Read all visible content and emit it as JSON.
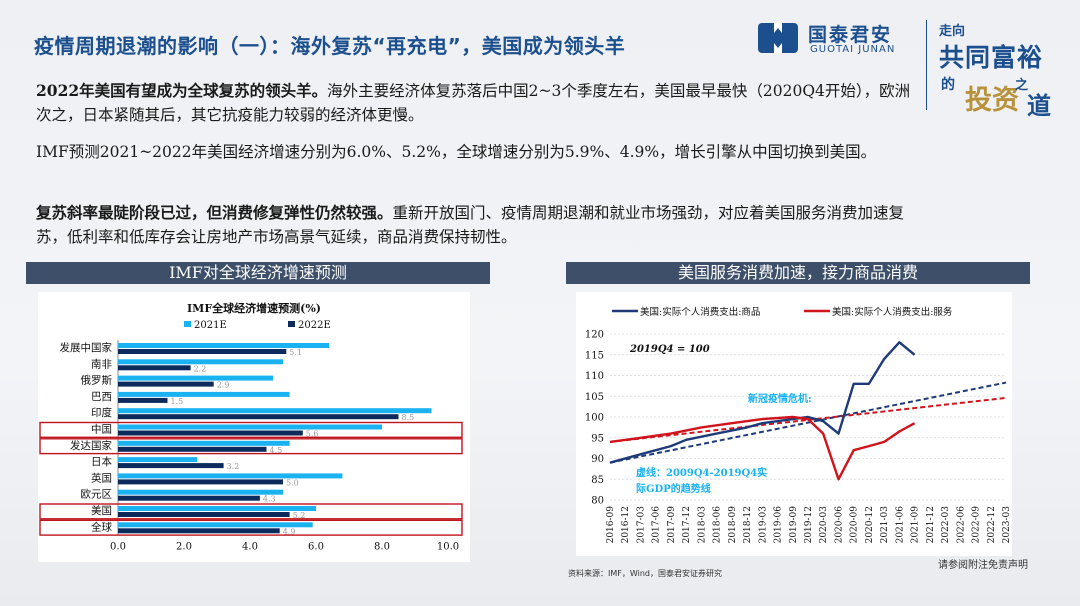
{
  "header": {
    "title": "疫情周期退潮的影响（一）：海外复苏“再充电”，美国成为领头羊",
    "logo_cn": "国泰君安",
    "logo_en": "GUOTAI JUNAN",
    "slogan": [
      "走向",
      "共同富裕",
      "的",
      "投资",
      "之",
      "道"
    ]
  },
  "paragraphs": {
    "p1_bold": "2022年美国有望成为全球复苏的领头羊。",
    "p1_rest": "海外主要经济体复苏落后中国2~3个季度左右，美国最早最快（2020Q4开始），欧洲次之，日本紧随其后，其它抗疫能力较弱的经济体更慢。",
    "p2": "IMF预测2021~2022年美国经济增速分别为6.0%、5.2%，全球增速分别为5.9%、4.9%，增长引擎从中国切换到美国。",
    "p3_bold": "复苏斜率最陡阶段已过，但消费修复弹性仍然较强。",
    "p3_rest": "重新开放国门、疫情周期退潮和就业市场强劲，对应着美国服务消费加速复苏，低利率和低库存会让房地产市场高景气延续，商品消费保持韧性。"
  },
  "panels": {
    "left_title": "IMF对全球经济增速预测",
    "right_title": "美国服务消费加速，接力商品消费"
  },
  "footer": {
    "source": "资料来源：IMF，Wind，国泰君安证券研究",
    "disclaimer": "请参阅附注免责声明"
  },
  "colors": {
    "navy": "#1c4f8e",
    "bar_2021": "#1ab2f0",
    "bar_2022": "#0d2a5c",
    "goods_line": "#1f3a78",
    "services_line": "#d0141c",
    "highlight_box": "#c0141c"
  },
  "chart_data": [
    {
      "type": "bar",
      "orientation": "horizontal",
      "title": "IMF全球经济增速预测(%)",
      "categories": [
        "发展中国家",
        "南非",
        "俄罗斯",
        "巴西",
        "印度",
        "中国",
        "发达国家",
        "日本",
        "英国",
        "欧元区",
        "美国",
        "全球"
      ],
      "series": [
        {
          "name": "2021E",
          "values": [
            6.4,
            5.0,
            4.7,
            5.2,
            9.5,
            8.0,
            5.2,
            2.4,
            6.8,
            5.0,
            6.0,
            5.9
          ]
        },
        {
          "name": "2022E",
          "values": [
            5.1,
            2.2,
            2.9,
            1.5,
            8.5,
            5.6,
            4.5,
            3.2,
            5.0,
            4.3,
            5.2,
            4.9
          ]
        }
      ],
      "data_labels_2022": [
        "5.1",
        "2.2",
        "2.9",
        "1.5",
        "8.5",
        "5.6",
        "4.5",
        "3.2",
        "5.0",
        "4.3",
        "5.2",
        "4.9"
      ],
      "highlighted": [
        "中国",
        "发达国家",
        "美国",
        "全球"
      ],
      "xlim": [
        0,
        10
      ],
      "xticks": [
        "0.0",
        "2.0",
        "4.0",
        "6.0",
        "8.0",
        "10.0"
      ]
    },
    {
      "type": "line",
      "series": [
        {
          "name": "美国:实际个人消费支出:商品",
          "points": [
            [
              0,
              89
            ],
            [
              4,
              91
            ],
            [
              8,
              93
            ],
            [
              10,
              94.5
            ],
            [
              14,
              96
            ],
            [
              18,
              97.5
            ],
            [
              20,
              98.5
            ],
            [
              24,
              99.5
            ],
            [
              26,
              100
            ],
            [
              28,
              99
            ],
            [
              30,
              96
            ],
            [
              32,
              108
            ],
            [
              34,
              108
            ],
            [
              36,
              114
            ],
            [
              38,
              118
            ],
            [
              40,
              115
            ]
          ]
        },
        {
          "name": "美国:实际个人消费支出:服务",
          "points": [
            [
              0,
              94
            ],
            [
              4,
              95
            ],
            [
              8,
              96
            ],
            [
              12,
              97.5
            ],
            [
              16,
              98.5
            ],
            [
              20,
              99.5
            ],
            [
              24,
              100
            ],
            [
              26,
              99.5
            ],
            [
              28,
              96
            ],
            [
              30,
              85
            ],
            [
              32,
              92
            ],
            [
              34,
              93
            ],
            [
              36,
              94
            ],
            [
              38,
              96.5
            ],
            [
              40,
              98.5
            ]
          ]
        },
        {
          "name": "商品趋势线",
          "points": [
            [
              0,
              89
            ],
            [
              52,
              108.3
            ]
          ]
        },
        {
          "name": "服务趋势线",
          "points": [
            [
              0,
              94
            ],
            [
              52,
              104.6
            ]
          ]
        }
      ],
      "x_labels": [
        "2016-09",
        "2016-12",
        "2017-03",
        "2017-06",
        "2017-09",
        "2017-12",
        "2018-03",
        "2018-06",
        "2018-09",
        "2018-12",
        "2019-03",
        "2019-06",
        "2019-09",
        "2019-12",
        "2020-03",
        "2020-06",
        "2020-09",
        "2020-12",
        "2021-03",
        "2021-06",
        "2021-09",
        "2021-12",
        "2022-03",
        "2022-06",
        "2022-09",
        "2022-12",
        "2023-03"
      ],
      "ylim": [
        80,
        120
      ],
      "yticks": [
        "80",
        "85",
        "90",
        "95",
        "100",
        "105",
        "110",
        "115",
        "120"
      ],
      "annotations": {
        "base": "2019Q4 = 100",
        "crisis": "新冠疫情危机:",
        "trend_note_1": "虚线：2009Q4-2019Q4实",
        "trend_note_2": "际GDP的趋势线"
      }
    }
  ]
}
